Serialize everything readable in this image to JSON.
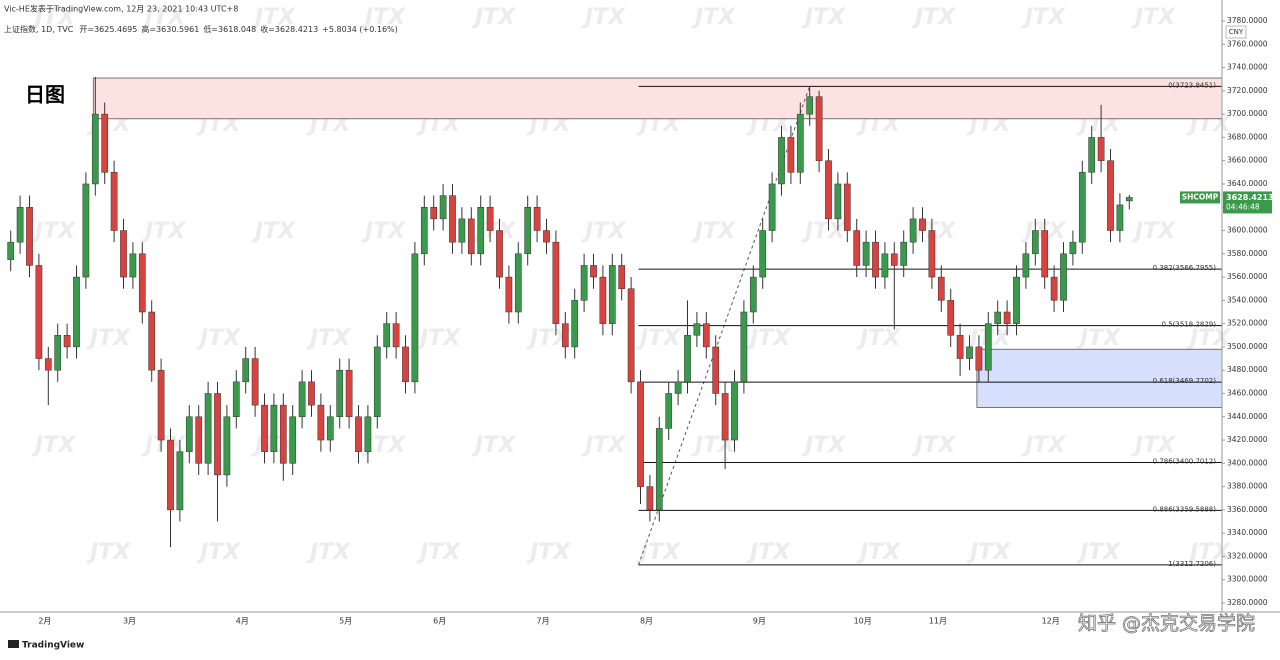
{
  "chart_data": {
    "type": "candlestick",
    "source_line": "Vic-HE发表于TradingView.com, 12月 23, 2021 10:43 UTC+8",
    "symbol_line": "上证指数, 1D, TVC",
    "ohlc_prefixes": [
      "开=",
      "高=",
      "低=",
      "收="
    ],
    "change": "+5.8034 (+0.16%)",
    "title": "日图",
    "currency": "CNY",
    "ticker": "SHCOMP",
    "countdown": "04:46:48",
    "watermark": "JTX",
    "platform": "TradingView",
    "credit": "知乎 @杰克交易学院",
    "up_color": "#3a9a4c",
    "down_color": "#d8433f",
    "grid": false,
    "categories": [
      null,
      null,
      null,
      "2月",
      null,
      null,
      null,
      null,
      null,
      null,
      null,
      null,
      "3月",
      null,
      null,
      null,
      null,
      null,
      null,
      null,
      null,
      null,
      null,
      null,
      "4月",
      null,
      null,
      null,
      null,
      null,
      null,
      null,
      null,
      null,
      null,
      "5月",
      null,
      null,
      null,
      null,
      null,
      null,
      null,
      null,
      null,
      "6月",
      null,
      null,
      null,
      null,
      null,
      null,
      null,
      null,
      null,
      null,
      "7月",
      null,
      null,
      null,
      null,
      null,
      null,
      null,
      null,
      null,
      null,
      "8月",
      null,
      null,
      null,
      null,
      null,
      null,
      null,
      null,
      null,
      null,
      null,
      "9月",
      null,
      null,
      null,
      null,
      null,
      null,
      null,
      null,
      null,
      null,
      "10月",
      null,
      null,
      null,
      null,
      null,
      null,
      null,
      "11月",
      null,
      null,
      null,
      null,
      null,
      null,
      null,
      null,
      null,
      null,
      null,
      "12月",
      null,
      null,
      null,
      null,
      null,
      null,
      null,
      null,
      null
    ],
    "open": [
      3575,
      3590,
      3620,
      3570,
      3490,
      3480,
      3510,
      3500,
      3560,
      3640,
      3700,
      3650,
      3600,
      3560,
      3580,
      3530,
      3480,
      3420,
      3360,
      3410,
      3440,
      3400,
      3460,
      3390,
      3440,
      3470,
      3490,
      3450,
      3410,
      3450,
      3400,
      3440,
      3470,
      3450,
      3420,
      3440,
      3480,
      3440,
      3410,
      3440,
      3500,
      3520,
      3500,
      3470,
      3580,
      3620,
      3610,
      3630,
      3590,
      3610,
      3580,
      3620,
      3600,
      3560,
      3530,
      3580,
      3620,
      3600,
      3590,
      3520,
      3500,
      3540,
      3570,
      3560,
      3520,
      3570,
      3550,
      3470,
      3380,
      3360,
      3430,
      3460,
      3470,
      3510,
      3520,
      3500,
      3460,
      3420,
      3470,
      3530,
      3560,
      3600,
      3640,
      3680,
      3650,
      3700,
      3715,
      3660,
      3610,
      3640,
      3600,
      3570,
      3590,
      3560,
      3580,
      3570,
      3590,
      3610,
      3600,
      3560,
      3540,
      3510,
      3490,
      3500,
      3480,
      3520,
      3530,
      3520,
      3560,
      3580,
      3600,
      3560,
      3540,
      3580,
      3590,
      3650,
      3680,
      3660,
      3600,
      3625.4695
    ],
    "high": [
      3600,
      3630,
      3630,
      3580,
      3500,
      3520,
      3520,
      3570,
      3650,
      3732,
      3710,
      3660,
      3610,
      3590,
      3590,
      3540,
      3490,
      3430,
      3420,
      3450,
      3450,
      3470,
      3470,
      3450,
      3480,
      3500,
      3500,
      3460,
      3460,
      3460,
      3450,
      3480,
      3480,
      3460,
      3450,
      3490,
      3490,
      3450,
      3450,
      3510,
      3530,
      3530,
      3510,
      3590,
      3630,
      3630,
      3640,
      3640,
      3620,
      3620,
      3630,
      3630,
      3610,
      3570,
      3590,
      3630,
      3630,
      3610,
      3600,
      3530,
      3550,
      3580,
      3580,
      3570,
      3580,
      3580,
      3560,
      3480,
      3390,
      3440,
      3470,
      3480,
      3540,
      3530,
      3530,
      3510,
      3470,
      3480,
      3540,
      3570,
      3610,
      3650,
      3690,
      3690,
      3710,
      3723.8,
      3720,
      3670,
      3650,
      3650,
      3610,
      3600,
      3600,
      3590,
      3590,
      3600,
      3620,
      3620,
      3610,
      3570,
      3550,
      3520,
      3510,
      3510,
      3530,
      3540,
      3540,
      3570,
      3590,
      3610,
      3610,
      3570,
      3590,
      3600,
      3660,
      3690,
      3708,
      3670,
      3632,
      3630.5961
    ],
    "low": [
      3565,
      3580,
      3560,
      3480,
      3450,
      3470,
      3490,
      3490,
      3550,
      3630,
      3640,
      3590,
      3550,
      3550,
      3520,
      3470,
      3410,
      3328,
      3350,
      3400,
      3390,
      3390,
      3350,
      3380,
      3430,
      3460,
      3440,
      3400,
      3400,
      3385,
      3390,
      3430,
      3440,
      3410,
      3410,
      3430,
      3430,
      3400,
      3400,
      3430,
      3490,
      3490,
      3460,
      3460,
      3570,
      3600,
      3600,
      3580,
      3580,
      3570,
      3570,
      3590,
      3550,
      3520,
      3520,
      3570,
      3590,
      3580,
      3510,
      3490,
      3490,
      3530,
      3550,
      3510,
      3510,
      3540,
      3460,
      3365,
      3350,
      3350,
      3420,
      3450,
      3460,
      3500,
      3490,
      3450,
      3395,
      3410,
      3460,
      3520,
      3550,
      3590,
      3630,
      3640,
      3640,
      3690,
      3650,
      3600,
      3600,
      3590,
      3560,
      3560,
      3550,
      3550,
      3515,
      3560,
      3580,
      3590,
      3550,
      3530,
      3500,
      3475,
      3480,
      3470,
      3470,
      3510,
      3510,
      3510,
      3550,
      3570,
      3550,
      3530,
      3530,
      3570,
      3580,
      3640,
      3650,
      3590,
      3590,
      3618.048
    ],
    "close": [
      3590,
      3620,
      3570,
      3490,
      3480,
      3510,
      3500,
      3560,
      3640,
      3700,
      3650,
      3600,
      3560,
      3580,
      3530,
      3480,
      3420,
      3360,
      3410,
      3440,
      3400,
      3460,
      3390,
      3440,
      3470,
      3490,
      3450,
      3410,
      3450,
      3400,
      3440,
      3470,
      3450,
      3420,
      3440,
      3480,
      3440,
      3410,
      3440,
      3500,
      3520,
      3500,
      3470,
      3580,
      3620,
      3610,
      3630,
      3590,
      3610,
      3580,
      3620,
      3600,
      3560,
      3530,
      3580,
      3620,
      3600,
      3590,
      3520,
      3500,
      3540,
      3570,
      3560,
      3520,
      3570,
      3550,
      3470,
      3380,
      3360,
      3430,
      3460,
      3470,
      3510,
      3520,
      3500,
      3460,
      3420,
      3470,
      3530,
      3560,
      3600,
      3640,
      3680,
      3650,
      3700,
      3715,
      3660,
      3610,
      3640,
      3600,
      3570,
      3590,
      3560,
      3580,
      3570,
      3590,
      3610,
      3600,
      3560,
      3540,
      3510,
      3490,
      3500,
      3480,
      3520,
      3530,
      3520,
      3560,
      3580,
      3600,
      3560,
      3540,
      3580,
      3590,
      3650,
      3680,
      3660,
      3600,
      3622,
      3628.4213
    ],
    "ylim": [
      3280,
      3780
    ],
    "yticks": [
      {
        "value": 3280,
        "label": "3280.0000"
      },
      {
        "value": 3300,
        "label": "3300.0000"
      },
      {
        "value": 3320,
        "label": "3320.0000"
      },
      {
        "value": 3340,
        "label": "3340.0000"
      },
      {
        "value": 3360,
        "label": "3360.0000"
      },
      {
        "value": 3380,
        "label": "3380.0000"
      },
      {
        "value": 3400,
        "label": "3400.0000"
      },
      {
        "value": 3420,
        "label": "3420.0000"
      },
      {
        "value": 3440,
        "label": "3440.0000"
      },
      {
        "value": 3460,
        "label": "3460.0000"
      },
      {
        "value": 3480,
        "label": "3480.0000"
      },
      {
        "value": 3500,
        "label": "3500.0000"
      },
      {
        "value": 3520,
        "label": "3520.0000"
      },
      {
        "value": 3540,
        "label": "3540.0000"
      },
      {
        "value": 3560,
        "label": "3560.0000"
      },
      {
        "value": 3580,
        "label": "3580.0000"
      },
      {
        "value": 3600,
        "label": "3600.0000"
      },
      {
        "value": 3620,
        "label": "3620.0000"
      },
      {
        "value": 3640,
        "label": "3640.0000"
      },
      {
        "value": 3660,
        "label": "3660.0000"
      },
      {
        "value": 3680,
        "label": "3680.0000"
      },
      {
        "value": 3700,
        "label": "3700.0000"
      },
      {
        "value": 3720,
        "label": "3720.0000"
      },
      {
        "value": 3740,
        "label": "3740.0000"
      },
      {
        "value": 3760,
        "label": "3760.0000"
      },
      {
        "value": 3780,
        "label": "3780.0000"
      }
    ],
    "fib_levels": [
      {
        "value": 3723.8451,
        "label": "0(3723.8451)"
      },
      {
        "value": 3566.7955,
        "label": "0.382(3566.7955)"
      },
      {
        "value": 3518.2829,
        "label": "0.5(3518.2829)"
      },
      {
        "value": 3469.7702,
        "label": "0.618(3469.7702)"
      },
      {
        "value": 3400.7012,
        "label": "0.786(3400.7012)"
      },
      {
        "value": 3359.5888,
        "label": "0.886(3359.5888)"
      },
      {
        "value": 3312.7206,
        "label": "1(3312.7206)"
      }
    ],
    "zones": [
      {
        "range": [
          3696,
          3731
        ],
        "color": "#fde2e2"
      },
      {
        "range": [
          3448,
          3498
        ],
        "color": "#d6dffb"
      }
    ]
  }
}
